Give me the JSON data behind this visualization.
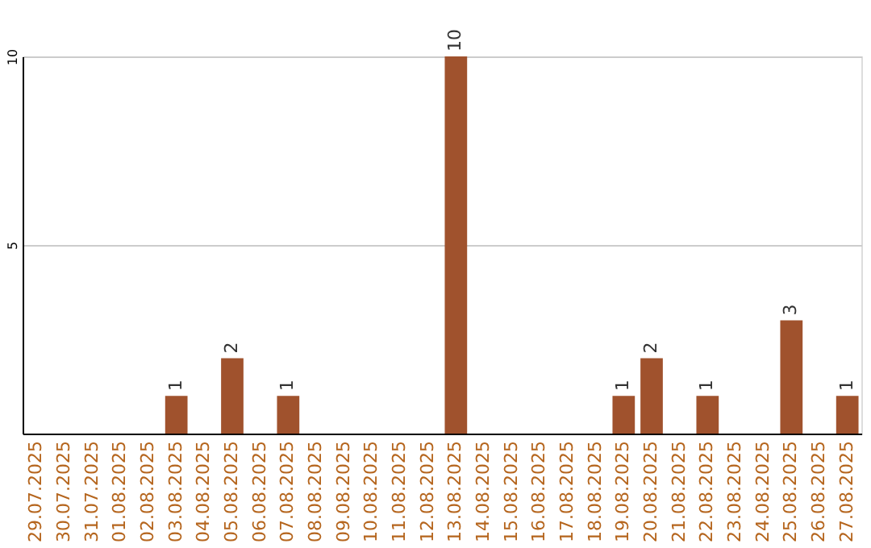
{
  "chart_data": {
    "type": "bar",
    "categories": [
      "29.07.2025",
      "30.07.2025",
      "31.07.2025",
      "01.08.2025",
      "02.08.2025",
      "03.08.2025",
      "04.08.2025",
      "05.08.2025",
      "06.08.2025",
      "07.08.2025",
      "08.08.2025",
      "09.08.2025",
      "10.08.2025",
      "11.08.2025",
      "12.08.2025",
      "13.08.2025",
      "14.08.2025",
      "15.08.2025",
      "16.08.2025",
      "17.08.2025",
      "18.08.2025",
      "19.08.2025",
      "20.08.2025",
      "21.08.2025",
      "22.08.2025",
      "23.08.2025",
      "24.08.2025",
      "25.08.2025",
      "26.08.2025",
      "27.08.2025"
    ],
    "values": [
      0,
      0,
      0,
      0,
      0,
      1,
      0,
      2,
      0,
      1,
      0,
      0,
      0,
      0,
      0,
      10,
      0,
      0,
      0,
      0,
      0,
      1,
      2,
      0,
      1,
      0,
      0,
      3,
      0,
      1
    ],
    "value_labels": [
      null,
      null,
      null,
      null,
      null,
      "1",
      null,
      "2",
      null,
      "1",
      null,
      null,
      null,
      null,
      null,
      "10",
      null,
      null,
      null,
      null,
      null,
      "1",
      "2",
      null,
      "1",
      null,
      null,
      "3",
      null,
      "1"
    ],
    "color": "#a0522d",
    "ylim": [
      0,
      10
    ],
    "yticks": [
      5,
      10
    ],
    "grid": "y"
  }
}
